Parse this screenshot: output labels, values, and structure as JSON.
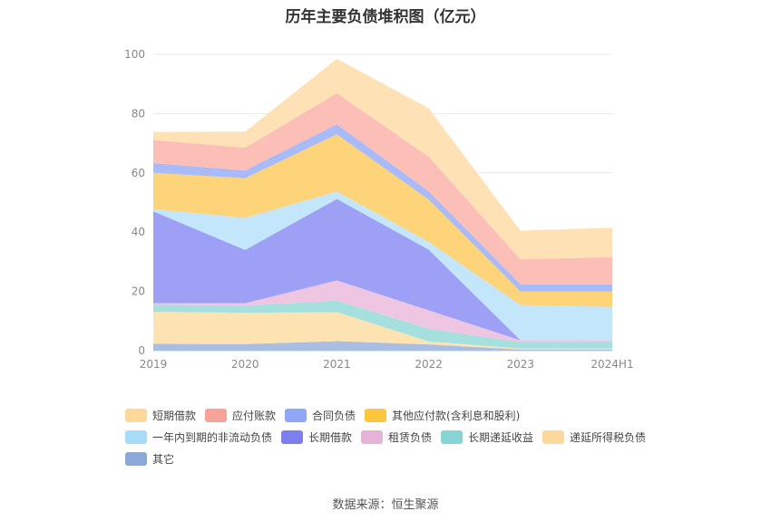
{
  "title": "历年主要负债堆积图（亿元）",
  "source": "数据来源：恒生聚源",
  "chart_data": {
    "type": "area",
    "stacked": true,
    "x": [
      "2019",
      "2020",
      "2021",
      "2022",
      "2023",
      "2024H1"
    ],
    "ylim": [
      0,
      100
    ],
    "yticks": [
      0,
      20,
      40,
      60,
      80,
      100
    ],
    "grid": true,
    "legend_position": "bottom",
    "series": [
      {
        "name": "其它",
        "color": "#a9bee0",
        "values": [
          2.3,
          2.2,
          3.2,
          2.1,
          0.4,
          0.4
        ]
      },
      {
        "name": "递延所得税负债",
        "color": "#fde3b2",
        "values": [
          10.8,
          10.6,
          9.8,
          1.0,
          0.3,
          0.3
        ]
      },
      {
        "name": "长期递延收益",
        "color": "#a5e0df",
        "values": [
          2.4,
          2.4,
          3.9,
          4.3,
          2.2,
          2.4
        ]
      },
      {
        "name": "租赁负债",
        "color": "#efc6e1",
        "values": [
          0.5,
          0.8,
          6.8,
          6.2,
          0.6,
          0.5
        ]
      },
      {
        "name": "长期借款",
        "color": "#9da0f5",
        "values": [
          31.0,
          18.0,
          27.5,
          20.5,
          0.0,
          0.0
        ]
      },
      {
        "name": "一年内到期的非流动负债",
        "color": "#c4e6fa",
        "values": [
          0.8,
          10.8,
          2.5,
          2.6,
          11.9,
          11.2
        ]
      },
      {
        "name": "其他应付款(含利息和股利)",
        "color": "#fed47a",
        "values": [
          12.2,
          13.4,
          19.3,
          14.3,
          4.6,
          5.2
        ]
      },
      {
        "name": "合同负债",
        "color": "#a9baf8",
        "values": [
          3.3,
          2.6,
          3.4,
          2.8,
          2.4,
          2.4
        ]
      },
      {
        "name": "应付账款",
        "color": "#fcbfb8",
        "values": [
          7.8,
          7.7,
          10.5,
          11.7,
          8.4,
          9.2
        ]
      },
      {
        "name": "短期借款",
        "color": "#fee2b5",
        "values": [
          2.7,
          5.4,
          11.6,
          16.3,
          9.7,
          9.9
        ]
      }
    ]
  },
  "legend": [
    {
      "label": "短期借款",
      "color": "#fdd89b"
    },
    {
      "label": "应付账款",
      "color": "#f8a39a"
    },
    {
      "label": "合同负债",
      "color": "#8fa7f4"
    },
    {
      "label": "其他应付款(含利息和股利)",
      "color": "#fcc63f"
    },
    {
      "label": "一年内到期的非流动负债",
      "color": "#a6dcf8"
    },
    {
      "label": "长期借款",
      "color": "#7d7ef0"
    },
    {
      "label": "租赁负债",
      "color": "#e6b2d8"
    },
    {
      "label": "长期递延收益",
      "color": "#86d5d4"
    },
    {
      "label": "递延所得税负债",
      "color": "#fdd89b"
    },
    {
      "label": "其它",
      "color": "#8aa8d8"
    }
  ]
}
